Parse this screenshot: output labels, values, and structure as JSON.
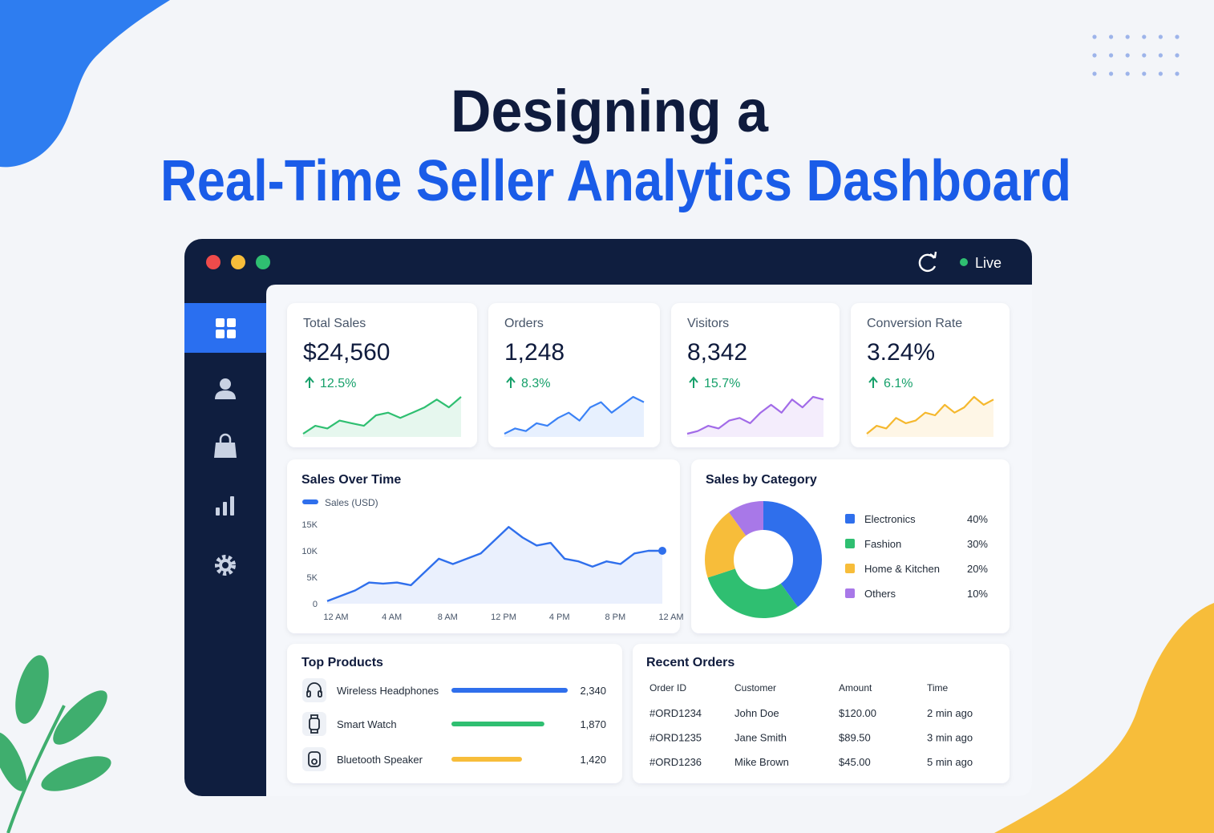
{
  "header": {
    "title_line1": "Designing a",
    "title_line2": "Real-Time Seller Analytics Dashboard"
  },
  "window": {
    "status": "Live"
  },
  "kpis": [
    {
      "label": "Total Sales",
      "value": "$24,560",
      "change": "12.5%",
      "color": "#2fbf71",
      "trend": [
        1,
        2.5,
        2,
        3.5,
        3,
        2.5,
        4.5,
        5,
        4,
        5,
        6,
        7.5,
        6,
        8
      ]
    },
    {
      "label": "Orders",
      "value": "1,248",
      "change": "8.3%",
      "color": "#3b82f6",
      "trend": [
        1,
        2,
        1.5,
        3,
        2.5,
        4,
        5,
        3.5,
        6,
        7,
        5,
        6.5,
        8,
        7
      ]
    },
    {
      "label": "Visitors",
      "value": "8,342",
      "change": "15.7%",
      "color": "#a26be8",
      "trend": [
        1,
        1.5,
        2.5,
        2,
        3.5,
        4,
        3,
        5,
        6.5,
        5,
        7.5,
        6,
        8,
        7.5
      ]
    },
    {
      "label": "Conversion Rate",
      "value": "3.24%",
      "change": "6.1%",
      "color": "#f5b82e",
      "trend": [
        1,
        2.5,
        2,
        4,
        3,
        3.5,
        5,
        4.5,
        6.5,
        5,
        6,
        8,
        6.5,
        7.5
      ]
    }
  ],
  "sales_over_time": {
    "type": "line",
    "title": "Sales Over Time",
    "x": [
      0,
      1,
      2,
      3,
      4,
      5,
      6,
      7,
      8,
      9,
      10,
      11,
      12,
      13,
      14,
      15,
      16,
      17,
      18,
      19,
      20,
      21,
      22,
      23,
      24
    ],
    "series": [
      {
        "name": "Sales (USD)",
        "color": "#2f6fec",
        "values": [
          500,
          1500,
          2500,
          4000,
          3800,
          4000,
          3500,
          6000,
          8500,
          7500,
          8500,
          9500,
          12000,
          14500,
          12500,
          11000,
          11500,
          8500,
          8000,
          7000,
          8000,
          7500,
          9500,
          10000,
          10000
        ]
      }
    ],
    "xlim": [
      0,
      24
    ],
    "xticks": [
      {
        "value": 0,
        "label": "12 AM"
      },
      {
        "value": 4,
        "label": "4 AM"
      },
      {
        "value": 8,
        "label": "8 AM"
      },
      {
        "value": 12,
        "label": "12 PM"
      },
      {
        "value": 16,
        "label": "4 PM"
      },
      {
        "value": 20,
        "label": "8 PM"
      },
      {
        "value": 24,
        "label": "12 AM"
      }
    ],
    "ylim": [
      0,
      15000
    ],
    "yticks": [
      0,
      {
        "value": 5000,
        "label": "5K"
      },
      {
        "value": 10000,
        "label": "10K"
      },
      {
        "value": 15000,
        "label": "15K"
      }
    ],
    "grid": false
  },
  "sales_by_category": {
    "type": "donut",
    "title": "Sales by Category",
    "categories": [
      "Electronics",
      "Fashion",
      "Home & Kitchen",
      "Others"
    ],
    "values": [
      40,
      30,
      20,
      10
    ],
    "value_labels": [
      "40%",
      "30%",
      "20%",
      "10%"
    ],
    "colors": [
      "#2f6fec",
      "#2fbf71",
      "#f7bd3a",
      "#a878e8"
    ]
  },
  "top_products": {
    "type": "bar",
    "title": "Top Products",
    "categories": [
      "Wireless Headphones",
      "Smart Watch",
      "Bluetooth Speaker"
    ],
    "values": [
      2340,
      1870,
      1420
    ],
    "value_labels": [
      "2,340",
      "1,870",
      "1,420"
    ],
    "colors": [
      "#2f6fec",
      "#2fbf71",
      "#f7bd3a"
    ]
  },
  "recent_orders": {
    "title": "Recent Orders",
    "columns": [
      "Order ID",
      "Customer",
      "Amount",
      "Time"
    ],
    "rows": [
      [
        "#ORD1234",
        "John Doe",
        "$120.00",
        "2 min ago"
      ],
      [
        "#ORD1235",
        "Jane Smith",
        "$89.50",
        "3 min ago"
      ],
      [
        "#ORD1236",
        "Mike Brown",
        "$45.00",
        "5 min ago"
      ]
    ]
  }
}
